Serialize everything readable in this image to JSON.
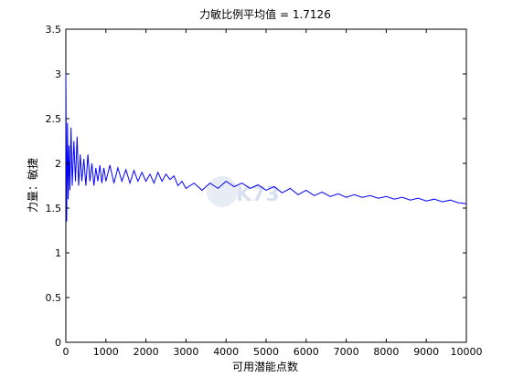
{
  "chart_data": {
    "type": "line",
    "title": "力敏比例平均值 = 1.7126",
    "xlabel": "可用潜能点数",
    "ylabel": "力量：敏捷",
    "xlim": [
      0,
      10000
    ],
    "ylim": [
      0,
      3.5
    ],
    "xticks": [
      0,
      1000,
      2000,
      3000,
      4000,
      5000,
      6000,
      7000,
      8000,
      9000,
      10000
    ],
    "yticks": [
      0,
      0.5,
      1,
      1.5,
      2,
      2.5,
      3,
      3.5
    ],
    "xtick_labels": [
      "0",
      "1000",
      "2000",
      "3000",
      "4000",
      "5000",
      "6000",
      "7000",
      "8000",
      "9000",
      "10000"
    ],
    "ytick_labels": [
      "0",
      "0.5",
      "1",
      "1.5",
      "2",
      "2.5",
      "3",
      "3.5"
    ],
    "grid": false,
    "legend": "none",
    "line_color": "#0000ff",
    "watermark_text": "K73",
    "series": [
      {
        "x": [
          0,
          20,
          40,
          60,
          80,
          100,
          130,
          160,
          200,
          240,
          280,
          320,
          360,
          400,
          450,
          500,
          550,
          600,
          650,
          700,
          750,
          800,
          850,
          900,
          950,
          1000,
          1100,
          1200,
          1300,
          1400,
          1500,
          1600,
          1700,
          1800,
          1900,
          2000,
          2100,
          2200,
          2300,
          2400,
          2500,
          2600,
          2700,
          2800,
          2900,
          3000,
          3200,
          3400,
          3600,
          3800,
          4000,
          4200,
          4400,
          4600,
          4800,
          5000,
          5200,
          5400,
          5600,
          5800,
          6000,
          6200,
          6400,
          6600,
          6800,
          7000,
          7200,
          7400,
          7600,
          7800,
          8000,
          8200,
          8400,
          8600,
          8800,
          9000,
          9200,
          9400,
          9600,
          9800,
          10000
        ],
        "y": [
          3.0,
          1.35,
          2.45,
          1.6,
          2.2,
          1.7,
          2.4,
          1.75,
          2.25,
          1.8,
          2.3,
          1.75,
          2.1,
          1.8,
          2.05,
          1.75,
          2.1,
          1.8,
          2.0,
          1.75,
          1.95,
          1.8,
          1.98,
          1.78,
          1.95,
          1.8,
          1.98,
          1.78,
          1.95,
          1.8,
          1.93,
          1.78,
          1.92,
          1.8,
          1.9,
          1.8,
          1.88,
          1.78,
          1.9,
          1.8,
          1.88,
          1.82,
          1.86,
          1.75,
          1.8,
          1.72,
          1.78,
          1.7,
          1.78,
          1.72,
          1.8,
          1.74,
          1.78,
          1.72,
          1.76,
          1.7,
          1.74,
          1.67,
          1.72,
          1.65,
          1.7,
          1.64,
          1.68,
          1.63,
          1.66,
          1.62,
          1.65,
          1.62,
          1.64,
          1.61,
          1.63,
          1.6,
          1.62,
          1.59,
          1.61,
          1.58,
          1.6,
          1.57,
          1.59,
          1.56,
          1.55
        ]
      }
    ]
  }
}
